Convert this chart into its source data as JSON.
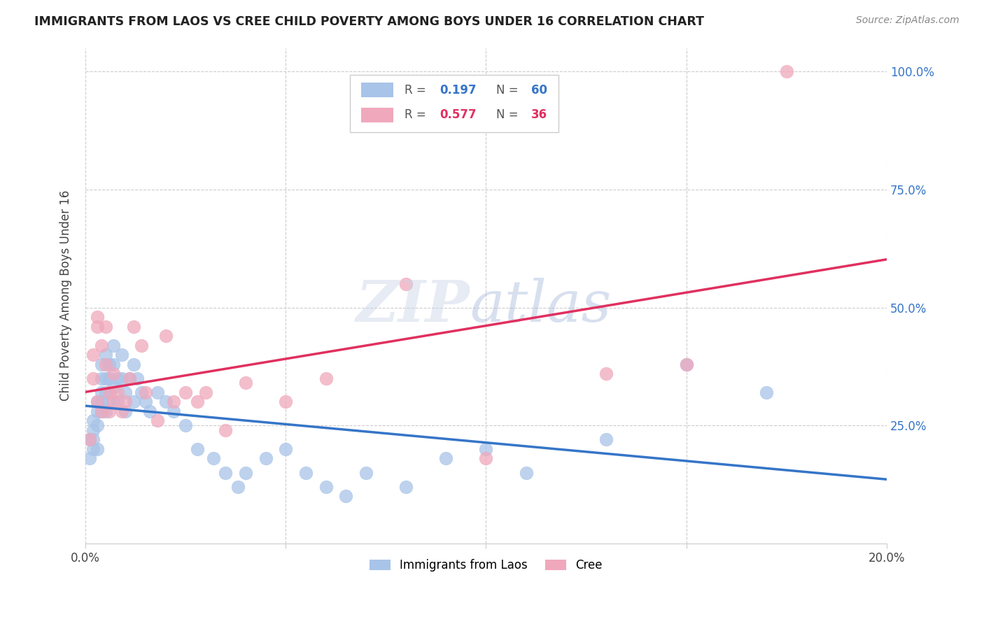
{
  "title": "IMMIGRANTS FROM LAOS VS CREE CHILD POVERTY AMONG BOYS UNDER 16 CORRELATION CHART",
  "source": "Source: ZipAtlas.com",
  "ylabel": "Child Poverty Among Boys Under 16",
  "xlim": [
    0.0,
    0.2
  ],
  "ylim": [
    0.0,
    1.05
  ],
  "xticks": [
    0.0,
    0.05,
    0.1,
    0.15,
    0.2
  ],
  "xtick_labels": [
    "0.0%",
    "",
    "",
    "",
    "20.0%"
  ],
  "yticks": [
    0.0,
    0.25,
    0.5,
    0.75,
    1.0
  ],
  "ytick_labels_right": [
    "",
    "25.0%",
    "50.0%",
    "75.0%",
    "100.0%"
  ],
  "blue_color": "#a8c4e8",
  "pink_color": "#f0a8bc",
  "blue_line_color": "#3575c8",
  "pink_line_color": "#e03060",
  "blue_R": 0.197,
  "blue_N": 60,
  "pink_R": 0.577,
  "pink_N": 36,
  "legend_label_blue": "Immigrants from Laos",
  "legend_label_pink": "Cree",
  "blue_scatter_x": [
    0.001,
    0.001,
    0.002,
    0.002,
    0.002,
    0.002,
    0.003,
    0.003,
    0.003,
    0.003,
    0.004,
    0.004,
    0.004,
    0.004,
    0.004,
    0.005,
    0.005,
    0.005,
    0.005,
    0.006,
    0.006,
    0.006,
    0.007,
    0.007,
    0.007,
    0.008,
    0.008,
    0.009,
    0.009,
    0.01,
    0.01,
    0.011,
    0.012,
    0.012,
    0.013,
    0.014,
    0.015,
    0.016,
    0.018,
    0.02,
    0.022,
    0.025,
    0.028,
    0.032,
    0.035,
    0.038,
    0.04,
    0.045,
    0.05,
    0.055,
    0.06,
    0.065,
    0.07,
    0.08,
    0.09,
    0.1,
    0.11,
    0.13,
    0.15,
    0.17
  ],
  "blue_scatter_y": [
    0.22,
    0.18,
    0.24,
    0.2,
    0.26,
    0.22,
    0.28,
    0.25,
    0.3,
    0.2,
    0.35,
    0.32,
    0.28,
    0.38,
    0.3,
    0.4,
    0.35,
    0.32,
    0.28,
    0.38,
    0.35,
    0.3,
    0.42,
    0.38,
    0.33,
    0.35,
    0.3,
    0.4,
    0.35,
    0.32,
    0.28,
    0.35,
    0.38,
    0.3,
    0.35,
    0.32,
    0.3,
    0.28,
    0.32,
    0.3,
    0.28,
    0.25,
    0.2,
    0.18,
    0.15,
    0.12,
    0.15,
    0.18,
    0.2,
    0.15,
    0.12,
    0.1,
    0.15,
    0.12,
    0.18,
    0.2,
    0.15,
    0.22,
    0.38,
    0.32
  ],
  "pink_scatter_x": [
    0.001,
    0.002,
    0.002,
    0.003,
    0.003,
    0.003,
    0.004,
    0.004,
    0.005,
    0.005,
    0.006,
    0.006,
    0.007,
    0.007,
    0.008,
    0.009,
    0.01,
    0.011,
    0.012,
    0.014,
    0.015,
    0.018,
    0.02,
    0.022,
    0.025,
    0.028,
    0.03,
    0.035,
    0.04,
    0.05,
    0.06,
    0.08,
    0.1,
    0.13,
    0.15,
    0.175
  ],
  "pink_scatter_y": [
    0.22,
    0.4,
    0.35,
    0.46,
    0.48,
    0.3,
    0.42,
    0.28,
    0.46,
    0.38,
    0.28,
    0.32,
    0.36,
    0.3,
    0.32,
    0.28,
    0.3,
    0.35,
    0.46,
    0.42,
    0.32,
    0.26,
    0.44,
    0.3,
    0.32,
    0.3,
    0.32,
    0.24,
    0.34,
    0.3,
    0.35,
    0.55,
    0.18,
    0.36,
    0.38,
    1.0
  ]
}
